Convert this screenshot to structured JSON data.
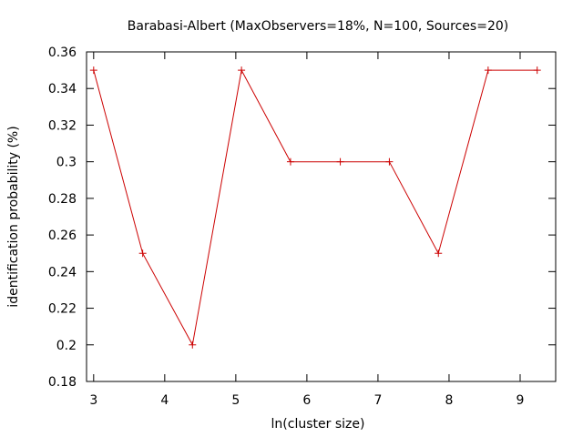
{
  "chart_data": {
    "type": "line",
    "title": "Barabasi-Albert (MaxObservers=18%, N=100, Sources=20)",
    "xlabel": "ln(cluster size)",
    "ylabel": "identification probability (%)",
    "xlim": [
      2.9,
      9.5
    ],
    "ylim": [
      0.18,
      0.36
    ],
    "xticks": [
      3,
      4,
      5,
      6,
      7,
      8,
      9
    ],
    "xtick_labels": [
      "3",
      "4",
      "5",
      "6",
      "7",
      "8",
      "9"
    ],
    "yticks": [
      0.18,
      0.2,
      0.22,
      0.24,
      0.26,
      0.28,
      0.3,
      0.32,
      0.34,
      0.36
    ],
    "ytick_labels": [
      "0.18",
      "0.2",
      "0.22",
      "0.24",
      "0.26",
      "0.28",
      "0.3",
      "0.32",
      "0.34",
      "0.36"
    ],
    "grid": false,
    "series": [
      {
        "color": "#cc0000",
        "marker": "+",
        "x": [
          3.0,
          3.69,
          4.39,
          5.08,
          5.77,
          6.47,
          7.16,
          7.85,
          8.55,
          9.24
        ],
        "y": [
          0.35,
          0.25,
          0.2,
          0.35,
          0.3,
          0.3,
          0.3,
          0.25,
          0.35,
          0.35
        ]
      }
    ]
  }
}
